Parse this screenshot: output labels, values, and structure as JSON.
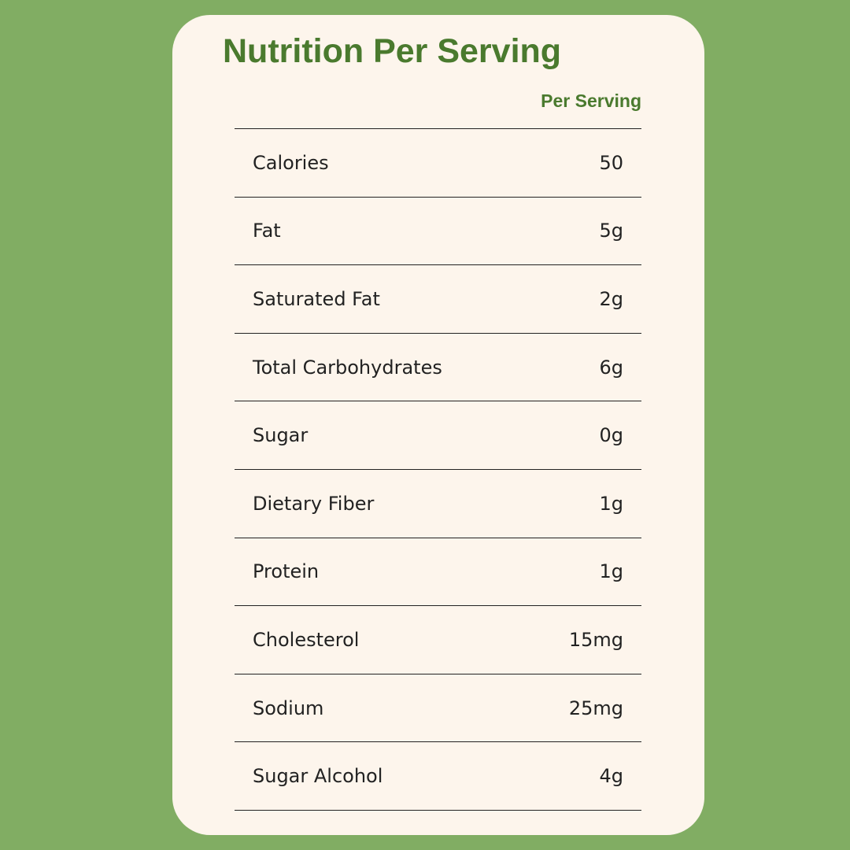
{
  "title": "Nutrition Per Serving",
  "column_header": "Per Serving",
  "rows": [
    {
      "label": "Calories",
      "value": "50"
    },
    {
      "label": "Fat",
      "value": "5g"
    },
    {
      "label": "Saturated Fat",
      "value": "2g"
    },
    {
      "label": "Total Carbohydrates",
      "value": "6g"
    },
    {
      "label": "Sugar",
      "value": "0g"
    },
    {
      "label": "Dietary Fiber",
      "value": "1g"
    },
    {
      "label": "Protein",
      "value": "1g"
    },
    {
      "label": "Cholesterol",
      "value": "15mg"
    },
    {
      "label": "Sodium",
      "value": "25mg"
    },
    {
      "label": "Sugar Alcohol",
      "value": "4g"
    }
  ],
  "colors": {
    "background": "#81ad63",
    "card": "#fdf5ec",
    "accent": "#4a7a2e"
  }
}
